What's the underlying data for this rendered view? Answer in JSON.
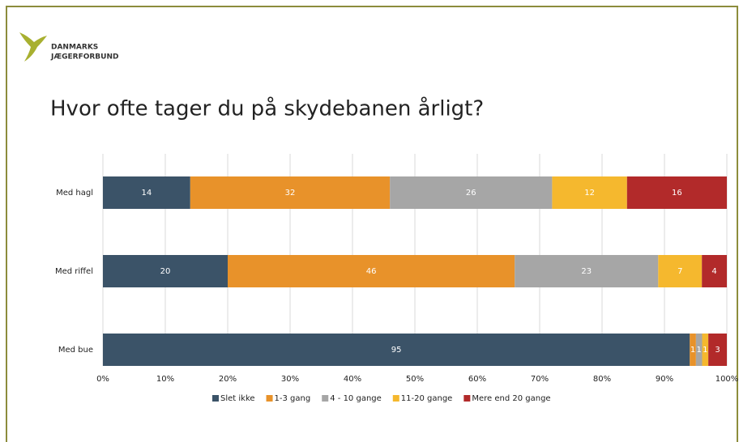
{
  "logo": {
    "lines": [
      "DANMARKS",
      "JÆGERFORBUND"
    ]
  },
  "chart_data": {
    "type": "percent-stacked-bar",
    "title": "Hvor ofte tager du på skydebanen årligt?",
    "categories": [
      "Med hagl",
      "Med riffel",
      "Med bue"
    ],
    "series": [
      {
        "name": "Slet ikke",
        "color": "#3b5368",
        "values": [
          14,
          20,
          95
        ]
      },
      {
        "name": "1-3 gang",
        "color": "#e8922a",
        "values": [
          32,
          46,
          1
        ]
      },
      {
        "name": "4 - 10 gange",
        "color": "#a6a6a6",
        "values": [
          26,
          23,
          1
        ]
      },
      {
        "name": "11-20 gange",
        "color": "#f5b82e",
        "values": [
          12,
          7,
          1
        ]
      },
      {
        "name": "Mere end 20 gange",
        "color": "#b22a2a",
        "values": [
          16,
          4,
          3
        ]
      }
    ],
    "xlim": [
      0,
      100
    ],
    "xticks": [
      {
        "value": 0,
        "label": "0%"
      },
      {
        "value": 10,
        "label": "10%"
      },
      {
        "value": 20,
        "label": "20%"
      },
      {
        "value": 30,
        "label": "30%"
      },
      {
        "value": 40,
        "label": "40%"
      },
      {
        "value": 50,
        "label": "50%"
      },
      {
        "value": 60,
        "label": "60%"
      },
      {
        "value": 70,
        "label": "70%"
      },
      {
        "value": 80,
        "label": "80%"
      },
      {
        "value": 90,
        "label": "90%"
      },
      {
        "value": 100,
        "label": "100%"
      }
    ],
    "grid": true,
    "legend": "bottom"
  }
}
